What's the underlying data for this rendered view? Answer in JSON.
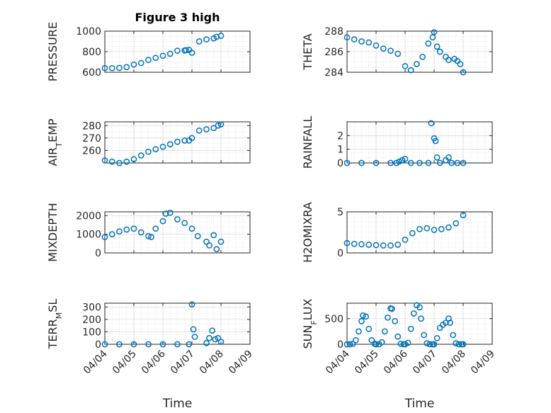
{
  "figure": {
    "title": "Figure 3 high",
    "xlabel": "Time",
    "marker_color": "#0072BD",
    "x_ticks": [
      "04/04",
      "04/05",
      "04/06",
      "04/07",
      "04/08",
      "04/09"
    ]
  },
  "chart_data": [
    {
      "type": "scatter",
      "ylabel": "PRESSURE",
      "xlim": [
        0,
        5
      ],
      "ylim": [
        600,
        1000
      ],
      "yticks": [
        600,
        800,
        1000
      ],
      "x": [
        0.0,
        0.25,
        0.5,
        0.75,
        1.0,
        1.25,
        1.5,
        1.75,
        2.0,
        2.25,
        2.5,
        2.75,
        2.8,
        2.9,
        3.0,
        3.25,
        3.5,
        3.75,
        3.85,
        4.0
      ],
      "y": [
        640,
        640,
        642,
        650,
        675,
        690,
        720,
        740,
        760,
        780,
        810,
        812,
        815,
        818,
        790,
        900,
        920,
        930,
        945,
        955
      ]
    },
    {
      "type": "scatter",
      "ylabel": "THETA",
      "xlim": [
        0,
        5
      ],
      "ylim": [
        284,
        288
      ],
      "yticks": [
        284,
        286,
        288
      ],
      "x": [
        0.0,
        0.25,
        0.5,
        0.75,
        1.0,
        1.25,
        1.5,
        1.75,
        2.0,
        2.2,
        2.4,
        2.6,
        2.8,
        2.95,
        3.0,
        3.1,
        3.2,
        3.4,
        3.5,
        3.7,
        3.8,
        3.9,
        4.0
      ],
      "y": [
        287.4,
        287.2,
        287.0,
        286.9,
        286.6,
        286.3,
        286.1,
        285.8,
        284.6,
        284.2,
        284.8,
        285.5,
        286.8,
        287.4,
        287.9,
        286.5,
        286.0,
        285.5,
        285.2,
        285.3,
        285.1,
        284.8,
        284.0
      ]
    },
    {
      "type": "scatter",
      "ylabel": "AIR_TEMP",
      "xlim": [
        0,
        5
      ],
      "ylim": [
        250,
        283
      ],
      "yticks": [
        260,
        270,
        280
      ],
      "x": [
        0.0,
        0.25,
        0.5,
        0.75,
        1.0,
        1.25,
        1.5,
        1.75,
        2.0,
        2.25,
        2.5,
        2.75,
        2.9,
        3.0,
        3.25,
        3.5,
        3.75,
        3.9,
        4.0
      ],
      "y": [
        252,
        251,
        250,
        251,
        253,
        256,
        259,
        261,
        263,
        265,
        267,
        268,
        268,
        270,
        276,
        277,
        278,
        280,
        281
      ]
    },
    {
      "type": "scatter",
      "ylabel": "RAINFALL",
      "xlim": [
        0,
        5
      ],
      "ylim": [
        0,
        3
      ],
      "yticks": [
        0,
        1,
        2
      ],
      "x": [
        0.0,
        0.5,
        1.0,
        1.5,
        1.7,
        1.8,
        1.9,
        2.0,
        2.2,
        2.5,
        2.8,
        2.9,
        3.0,
        3.05,
        3.1,
        3.2,
        3.4,
        3.5,
        3.6,
        3.8,
        4.0
      ],
      "y": [
        0,
        0,
        0,
        0,
        0,
        0.1,
        0.2,
        0.3,
        0,
        0,
        0,
        2.9,
        1.8,
        1.6,
        0.4,
        0,
        0.2,
        0.4,
        0,
        0,
        0
      ]
    },
    {
      "type": "scatter",
      "ylabel": "MIXDEPTH",
      "xlim": [
        0,
        5
      ],
      "ylim": [
        0,
        2200
      ],
      "yticks": [
        0,
        1000,
        2000
      ],
      "x": [
        0.0,
        0.25,
        0.5,
        0.75,
        1.0,
        1.25,
        1.5,
        1.6,
        1.75,
        2.0,
        2.1,
        2.25,
        2.5,
        2.75,
        3.0,
        3.2,
        3.5,
        3.6,
        3.75,
        3.85,
        4.0
      ],
      "y": [
        850,
        1000,
        1150,
        1250,
        1300,
        1100,
        900,
        850,
        1300,
        1700,
        2100,
        2150,
        1800,
        1600,
        1300,
        900,
        600,
        400,
        950,
        200,
        600
      ]
    },
    {
      "type": "scatter",
      "ylabel": "H2OMIXRA",
      "xlim": [
        0,
        5
      ],
      "ylim": [
        0,
        5
      ],
      "yticks": [
        0,
        5
      ],
      "x": [
        0.0,
        0.25,
        0.5,
        0.75,
        1.0,
        1.25,
        1.5,
        1.75,
        2.0,
        2.25,
        2.5,
        2.75,
        3.0,
        3.25,
        3.5,
        3.75,
        4.0
      ],
      "y": [
        1.2,
        1.1,
        1.05,
        1.0,
        0.95,
        0.9,
        0.9,
        1.0,
        1.6,
        2.4,
        2.9,
        3.0,
        2.8,
        2.9,
        3.1,
        3.6,
        4.6
      ]
    },
    {
      "type": "scatter",
      "ylabel": "TERR_MSL",
      "xlim": [
        0,
        5
      ],
      "ylim": [
        0,
        330
      ],
      "yticks": [
        0,
        100,
        200,
        300
      ],
      "x": [
        0.0,
        0.5,
        1.0,
        1.5,
        2.0,
        2.5,
        2.9,
        3.0,
        3.05,
        3.1,
        3.5,
        3.6,
        3.7,
        3.8,
        3.9,
        4.0
      ],
      "y": [
        0,
        0,
        0,
        0,
        0,
        0,
        0,
        320,
        120,
        60,
        10,
        50,
        110,
        40,
        50,
        20
      ]
    },
    {
      "type": "scatter",
      "ylabel": "SUN_FLUX",
      "xlim": [
        0,
        5
      ],
      "ylim": [
        0,
        800
      ],
      "yticks": [
        0,
        500
      ],
      "x": [
        0.0,
        0.1,
        0.2,
        0.3,
        0.4,
        0.5,
        0.55,
        0.65,
        0.75,
        0.85,
        0.95,
        1.0,
        1.1,
        1.2,
        1.3,
        1.4,
        1.5,
        1.55,
        1.65,
        1.75,
        1.85,
        1.95,
        2.0,
        2.1,
        2.2,
        2.3,
        2.4,
        2.5,
        2.55,
        2.65,
        2.75,
        2.85,
        2.95,
        3.0,
        3.1,
        3.2,
        3.3,
        3.4,
        3.5,
        3.55,
        3.65,
        3.75,
        3.85,
        3.95,
        4.0
      ],
      "y": [
        0,
        0,
        10,
        80,
        250,
        450,
        560,
        540,
        300,
        80,
        10,
        0,
        0,
        40,
        250,
        520,
        700,
        690,
        450,
        150,
        10,
        0,
        0,
        30,
        300,
        600,
        760,
        720,
        500,
        180,
        20,
        0,
        0,
        0,
        120,
        320,
        380,
        420,
        500,
        420,
        180,
        20,
        0,
        0,
        0
      ]
    }
  ]
}
